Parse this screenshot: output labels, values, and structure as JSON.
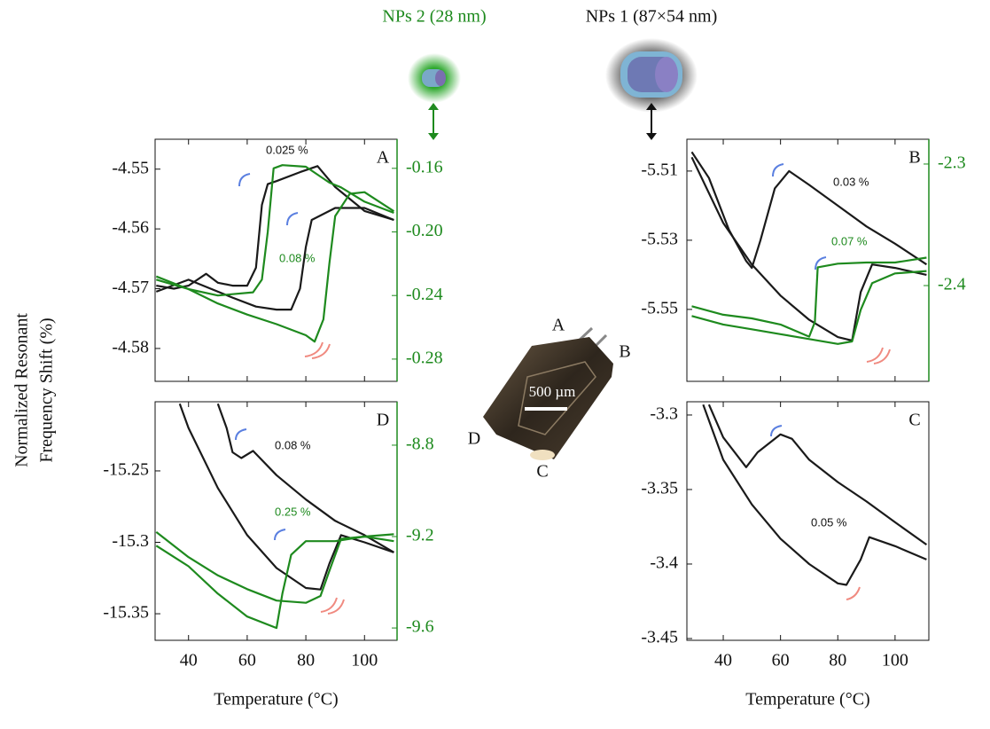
{
  "headers": {
    "nps2": "NPs 2 (28 nm)",
    "nps1": "NPs 1 (87×54 nm)"
  },
  "ylabel": [
    "Normalized Resonant",
    "Frequency Shift (%)"
  ],
  "chip": {
    "labels": [
      "A",
      "B",
      "C",
      "D"
    ],
    "scale": "500 µm"
  },
  "chart_data": [
    {
      "type": "line",
      "label": "A",
      "annotations": [
        "0.025 %",
        "0.08 %"
      ],
      "show_xtick_labels": false,
      "xlim": [
        28.6,
        111.1
      ],
      "xticks": [
        40,
        60,
        80,
        100
      ],
      "ylim": [
        -4.5855,
        -4.545
      ],
      "yticks": [
        -4.55,
        -4.56,
        -4.57,
        -4.58
      ],
      "y2lim": [
        -0.294,
        -0.1417
      ],
      "y2ticks": [
        -0.16,
        {
          "value": -0.2,
          "label": "-0.20"
        },
        -0.24,
        -0.28
      ],
      "y2_color": "#1e8a1e",
      "series": [
        {
          "color": "#1a1a1a",
          "x": [
            110,
            100,
            90,
            84,
            78,
            70,
            67,
            65,
            63,
            60,
            55,
            50,
            46,
            40,
            35,
            29
          ],
          "values": [
            -4.5585,
            -4.557,
            -4.553,
            -4.5495,
            -4.5505,
            -4.552,
            -4.5525,
            -4.556,
            -4.5665,
            -4.5695,
            -4.5695,
            -4.569,
            -4.5675,
            -4.5695,
            -4.57,
            -4.5695
          ]
        },
        {
          "color": "#1a1a1a",
          "x": [
            29,
            40,
            45,
            55,
            63,
            70,
            75,
            78,
            80,
            82,
            90,
            100,
            110
          ],
          "values": [
            -4.5705,
            -4.5685,
            -4.5695,
            -4.5715,
            -4.573,
            -4.5735,
            -4.5735,
            -4.57,
            -4.563,
            -4.5585,
            -4.5565,
            -4.5565,
            -4.5585
          ]
        },
        {
          "color": "#1e8a1e",
          "axis": "y2",
          "x": [
            110,
            100,
            92,
            88,
            80,
            72,
            69,
            67,
            65,
            62,
            50,
            40,
            29
          ],
          "values": [
            -0.188,
            -0.181,
            -0.172,
            -0.169,
            -0.159,
            -0.158,
            -0.16,
            -0.2,
            -0.23,
            -0.238,
            -0.24,
            -0.236,
            -0.228
          ]
        },
        {
          "color": "#1e8a1e",
          "axis": "y2",
          "x": [
            29,
            40,
            50,
            60,
            70,
            80,
            83,
            86,
            88,
            90,
            95,
            100,
            110
          ],
          "values": [
            -0.23,
            -0.236,
            -0.245,
            -0.252,
            -0.258,
            -0.265,
            -0.269,
            -0.255,
            -0.22,
            -0.19,
            -0.176,
            -0.175,
            -0.187
          ]
        }
      ]
    },
    {
      "type": "line",
      "label": "B",
      "annotations": [
        "0.03 %",
        "0.07 %"
      ],
      "show_xtick_labels": false,
      "xlim": [
        27.3,
        111.8
      ],
      "xticks": [
        40,
        60,
        80,
        100
      ],
      "ylim": [
        -5.5708,
        -5.5008
      ],
      "yticks": [
        -5.51,
        -5.53,
        -5.55
      ],
      "y2lim": [
        -2.4788,
        -2.2796
      ],
      "y2ticks": [
        -2.3,
        -2.4
      ],
      "y2_color": "#1e8a1e",
      "series": [
        {
          "color": "#1a1a1a",
          "x": [
            29,
            35,
            42,
            48,
            50,
            53,
            58,
            63,
            70,
            80,
            90,
            100,
            111
          ],
          "values": [
            -5.5045,
            -5.512,
            -5.527,
            -5.536,
            -5.538,
            -5.53,
            -5.515,
            -5.51,
            -5.514,
            -5.52,
            -5.526,
            -5.531,
            -5.537
          ]
        },
        {
          "color": "#1a1a1a",
          "x": [
            29,
            40,
            50,
            60,
            70,
            80,
            85,
            88,
            92,
            100,
            111
          ],
          "values": [
            -5.506,
            -5.525,
            -5.537,
            -5.546,
            -5.553,
            -5.558,
            -5.559,
            -5.545,
            -5.537,
            -5.538,
            -5.54
          ]
        },
        {
          "color": "#1e8a1e",
          "axis": "y2",
          "x": [
            111,
            100,
            90,
            80,
            73,
            72,
            70,
            60,
            50,
            40,
            29
          ],
          "values": [
            -2.377,
            -2.381,
            -2.381,
            -2.382,
            -2.385,
            -2.43,
            -2.442,
            -2.432,
            -2.427,
            -2.424,
            -2.417
          ]
        },
        {
          "color": "#1e8a1e",
          "axis": "y2",
          "x": [
            29,
            40,
            50,
            60,
            70,
            80,
            85,
            88,
            92,
            100,
            111
          ],
          "values": [
            -2.425,
            -2.432,
            -2.436,
            -2.44,
            -2.444,
            -2.448,
            -2.446,
            -2.42,
            -2.398,
            -2.39,
            -2.388
          ]
        }
      ]
    },
    {
      "type": "line",
      "label": "D",
      "annotations": [
        "0.08 %",
        "0.25 %"
      ],
      "show_xtick_labels": true,
      "xlabel": "Temperature (°C)",
      "xlim": [
        28.6,
        111.1
      ],
      "xticks": [
        40,
        60,
        80,
        100
      ],
      "ylim": [
        -15.3686,
        -15.2016
      ],
      "yticks": [
        -15.25,
        -15.3,
        -15.35
      ],
      "y2lim": [
        -9.654,
        -8.61
      ],
      "y2ticks": [
        -8.8,
        -9.2,
        -9.6
      ],
      "y2_color": "#1e8a1e",
      "series": [
        {
          "color": "#1a1a1a",
          "x": [
            110,
            100,
            90,
            80,
            70,
            62,
            58,
            55,
            53,
            50
          ],
          "values": [
            -15.307,
            -15.295,
            -15.285,
            -15.27,
            -15.253,
            -15.236,
            -15.241,
            -15.237,
            -15.22,
            -15.203
          ]
        },
        {
          "color": "#1a1a1a",
          "x": [
            37,
            40,
            50,
            60,
            70,
            80,
            85,
            88,
            92,
            100,
            110
          ],
          "values": [
            -15.203,
            -15.22,
            -15.262,
            -15.295,
            -15.318,
            -15.332,
            -15.333,
            -15.315,
            -15.295,
            -15.3,
            -15.307
          ]
        },
        {
          "color": "#1e8a1e",
          "axis": "y2",
          "x": [
            110,
            100,
            90,
            80,
            75,
            72,
            70,
            60,
            50,
            40,
            29
          ],
          "values": [
            -9.19,
            -9.2,
            -9.22,
            -9.22,
            -9.28,
            -9.45,
            -9.6,
            -9.55,
            -9.45,
            -9.33,
            -9.24
          ]
        },
        {
          "color": "#1e8a1e",
          "axis": "y2",
          "x": [
            29,
            40,
            50,
            60,
            70,
            80,
            85,
            88,
            92,
            100,
            110
          ],
          "values": [
            -9.18,
            -9.29,
            -9.37,
            -9.43,
            -9.48,
            -9.49,
            -9.46,
            -9.35,
            -9.21,
            -9.2,
            -9.22
          ]
        }
      ]
    },
    {
      "type": "line",
      "label": "C",
      "annotations": [
        "0.05 %"
      ],
      "show_xtick_labels": true,
      "xlabel": "Temperature (°C)",
      "xlim": [
        27.3,
        111.8
      ],
      "xticks": [
        40,
        60,
        80,
        100
      ],
      "ylim": [
        -3.4512,
        -3.2911
      ],
      "yticks": [
        -3.3,
        -3.35,
        -3.4,
        -3.45
      ],
      "series": [
        {
          "color": "#1a1a1a",
          "x": [
            35,
            40,
            48,
            52,
            60,
            64,
            70,
            80,
            90,
            100,
            111
          ],
          "values": [
            -3.293,
            -3.315,
            -3.335,
            -3.325,
            -3.313,
            -3.316,
            -3.33,
            -3.345,
            -3.358,
            -3.372,
            -3.387
          ]
        },
        {
          "color": "#1a1a1a",
          "x": [
            33,
            40,
            50,
            60,
            70,
            80,
            83,
            88,
            91,
            100,
            111
          ],
          "values": [
            -3.293,
            -3.33,
            -3.36,
            -3.383,
            -3.4,
            -3.413,
            -3.414,
            -3.397,
            -3.382,
            -3.388,
            -3.397
          ]
        }
      ]
    }
  ]
}
